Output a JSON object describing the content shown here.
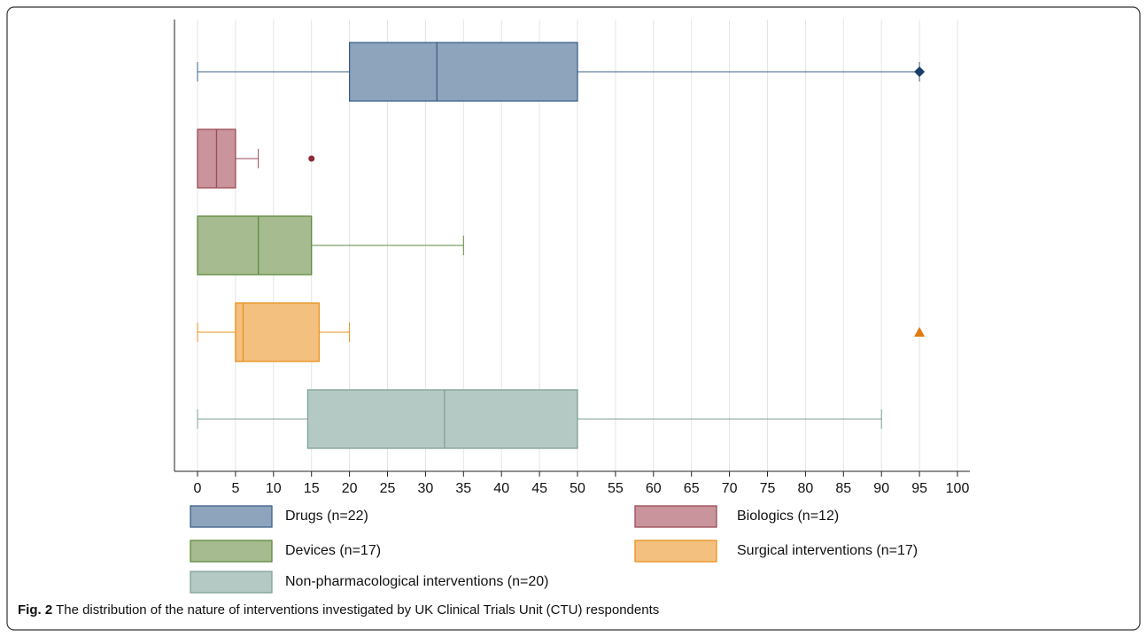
{
  "chart_data": {
    "type": "boxplot",
    "orientation": "horizontal",
    "xlim": [
      0,
      100
    ],
    "xticks": [
      0,
      5,
      10,
      15,
      20,
      25,
      30,
      35,
      40,
      45,
      50,
      55,
      60,
      65,
      70,
      75,
      80,
      85,
      90,
      95,
      100
    ],
    "grid": true,
    "series": [
      {
        "name": "Drugs (n=22)",
        "color": "#8ea4bd",
        "stroke": "#3e6089",
        "marker": "diamond",
        "marker_color": "#1a3f6b",
        "min": 0,
        "q1": 20,
        "median": 31.5,
        "q3": 50,
        "max": 95,
        "outliers": [
          95
        ]
      },
      {
        "name": "Biologics (n=12)",
        "color": "#c9949b",
        "stroke": "#9c4a55",
        "marker": "circle",
        "marker_color": "#8b2b35",
        "min": 0,
        "q1": 0,
        "median": 2.5,
        "q3": 5,
        "max": 8,
        "outliers": [
          15
        ]
      },
      {
        "name": "Devices (n=17)",
        "color": "#a6bb8f",
        "stroke": "#5f8a3e",
        "marker": "circle",
        "marker_color": "#5f8a3e",
        "min": 0,
        "q1": 0,
        "median": 8,
        "q3": 15,
        "max": 35,
        "outliers": []
      },
      {
        "name": "Surgical interventions (n=17)",
        "color": "#f3c07f",
        "stroke": "#e8921e",
        "marker": "triangle",
        "marker_color": "#e07b10",
        "min": 0,
        "q1": 5,
        "median": 6,
        "q3": 16,
        "max": 20,
        "outliers": [
          95
        ]
      },
      {
        "name": "Non-pharmacological interventions (n=20)",
        "color": "#b5c9c4",
        "stroke": "#7fa096",
        "marker": "circle",
        "marker_color": "#7fa096",
        "min": 0,
        "q1": 14.5,
        "median": 32.5,
        "q3": 50,
        "max": 90,
        "outliers": []
      }
    ]
  },
  "figure": {
    "label": "Fig. 2",
    "caption": "The distribution of the nature of interventions investigated by UK Clinical Trials Unit (CTU) respondents"
  }
}
